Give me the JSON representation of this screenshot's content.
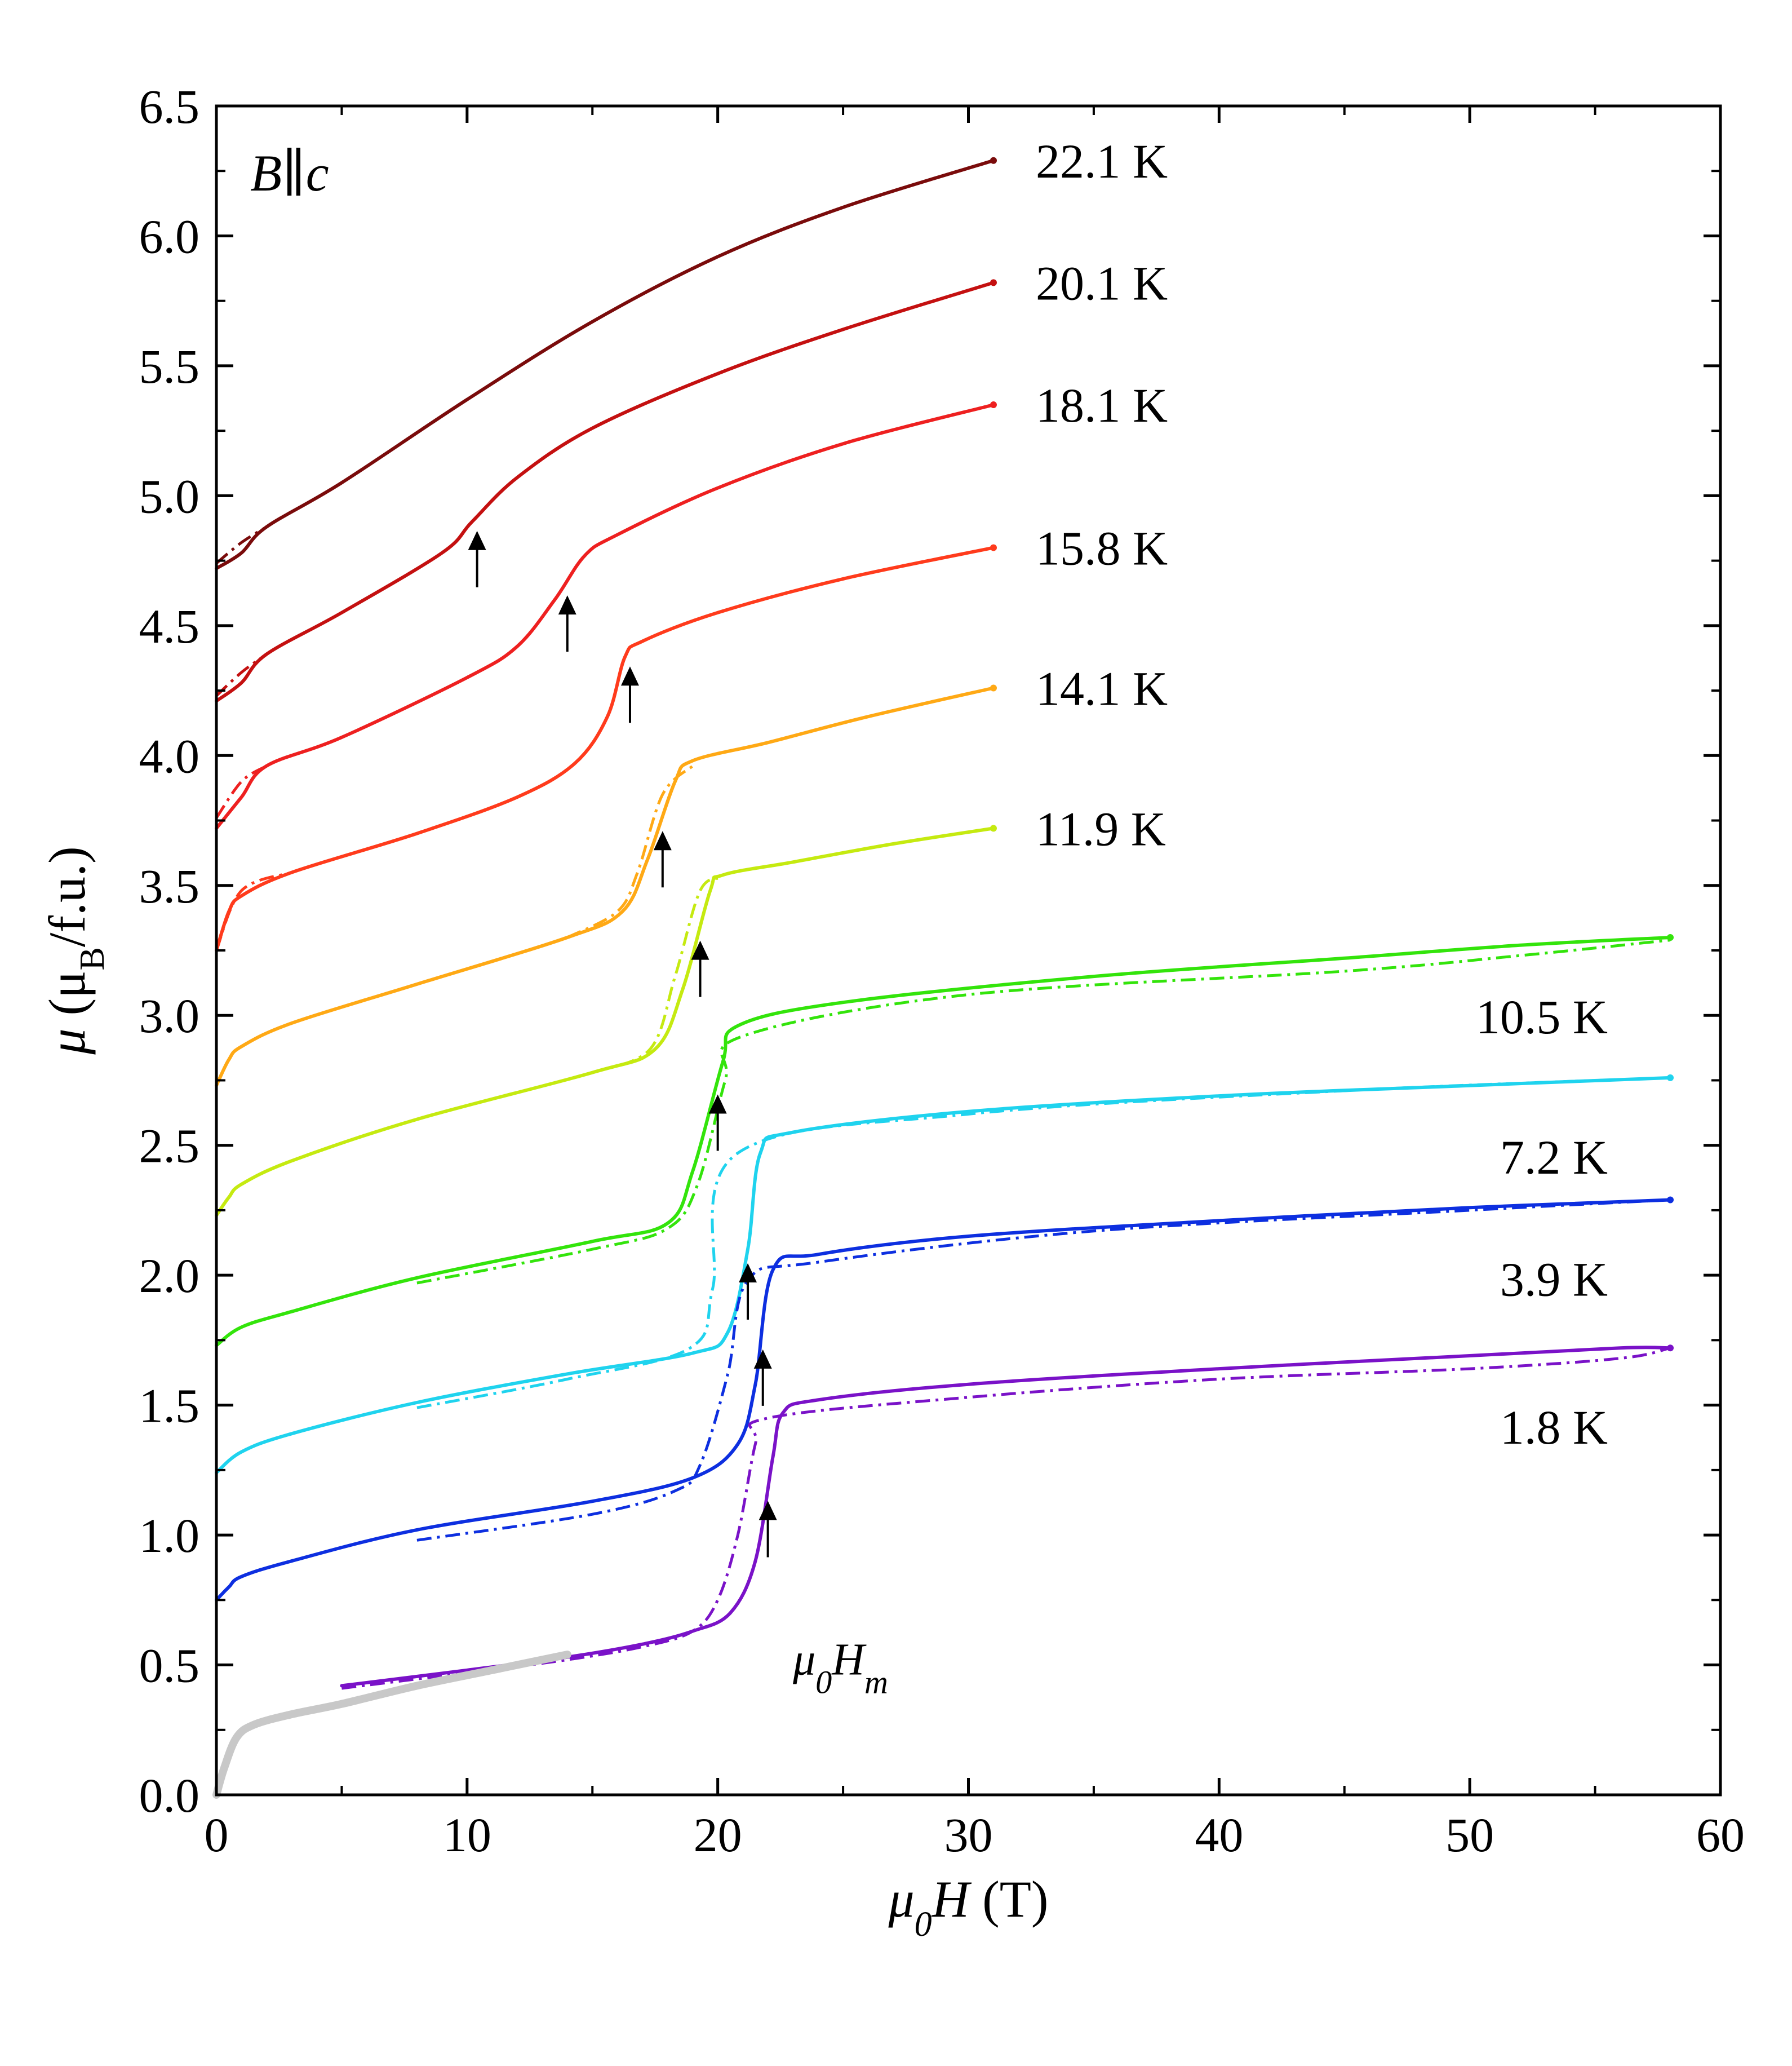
{
  "chart_data": {
    "type": "line",
    "title": "",
    "xlabel": {
      "symbol": "μ",
      "sub": "0",
      "var": "H",
      "unit": " (T)"
    },
    "ylabel": {
      "symbol": "μ",
      "open": " (μ",
      "sub": "B",
      "close": "/f.u.)"
    },
    "xlim": [
      0,
      60
    ],
    "ylim": [
      0,
      6.5
    ],
    "xticks": [
      "0",
      "10",
      "20",
      "30",
      "40",
      "50",
      "60"
    ],
    "yticks": [
      "0.0",
      "0.5",
      "1.0",
      "1.5",
      "2.0",
      "2.5",
      "3.0",
      "3.5",
      "4.0",
      "4.5",
      "5.0",
      "5.5",
      "6.0",
      "6.5"
    ],
    "field_label": {
      "var": "B",
      "rel": "∥",
      "axis": "c"
    },
    "marker_label": {
      "symbol": "μ",
      "sub": "0",
      "var": "H",
      "subvar": "m"
    },
    "series": [
      {
        "name": "22.1 K",
        "color": "#7a0b0b",
        "x_max": 31,
        "points": [
          [
            0,
            4.72
          ],
          [
            1,
            4.78
          ],
          [
            2,
            4.88
          ],
          [
            5,
            5.05
          ],
          [
            10,
            5.37
          ],
          [
            15,
            5.67
          ],
          [
            20,
            5.92
          ],
          [
            25,
            6.11
          ],
          [
            31,
            6.29
          ]
        ],
        "down_points": [
          [
            0,
            4.74
          ],
          [
            1,
            4.82
          ],
          [
            2,
            4.88
          ]
        ],
        "transition": null
      },
      {
        "name": "20.1 K",
        "color": "#c41010",
        "x_max": 31,
        "points": [
          [
            0,
            4.21
          ],
          [
            1,
            4.28
          ],
          [
            2,
            4.39
          ],
          [
            5,
            4.55
          ],
          [
            9,
            4.78
          ],
          [
            10.2,
            4.9
          ],
          [
            12,
            5.07
          ],
          [
            15,
            5.26
          ],
          [
            20,
            5.47
          ],
          [
            25,
            5.64
          ],
          [
            31,
            5.82
          ]
        ],
        "down_points": [
          [
            0,
            4.23
          ],
          [
            1,
            4.32
          ],
          [
            2,
            4.39
          ]
        ],
        "transition": 10.4
      },
      {
        "name": "18.1 K",
        "color": "#ee2020",
        "x_max": 31,
        "points": [
          [
            0,
            3.72
          ],
          [
            1,
            3.84
          ],
          [
            2,
            3.96
          ],
          [
            5,
            4.07
          ],
          [
            10,
            4.3
          ],
          [
            12,
            4.42
          ],
          [
            13.5,
            4.6
          ],
          [
            14.7,
            4.77
          ],
          [
            16,
            4.85
          ],
          [
            20,
            5.03
          ],
          [
            25,
            5.2
          ],
          [
            31,
            5.35
          ]
        ],
        "down_points": [
          [
            0,
            3.76
          ],
          [
            1,
            3.9
          ],
          [
            2,
            3.96
          ]
        ],
        "transition": 14.0
      },
      {
        "name": "15.8 K",
        "color": "#ff3b1c",
        "x_max": 31,
        "points": [
          [
            0,
            3.25
          ],
          [
            0.5,
            3.4
          ],
          [
            1,
            3.46
          ],
          [
            3,
            3.55
          ],
          [
            8,
            3.7
          ],
          [
            12,
            3.84
          ],
          [
            14.3,
            3.97
          ],
          [
            15.6,
            4.15
          ],
          [
            16.3,
            4.38
          ],
          [
            17,
            4.44
          ],
          [
            20,
            4.55
          ],
          [
            25,
            4.68
          ],
          [
            31,
            4.8
          ]
        ],
        "down_points": [
          [
            0,
            3.25
          ],
          [
            1,
            3.48
          ],
          [
            3,
            3.55
          ]
        ],
        "transition": 16.5
      },
      {
        "name": "14.1 K",
        "color": "#ffa915",
        "x_max": 31,
        "points": [
          [
            0,
            2.73
          ],
          [
            0.5,
            2.83
          ],
          [
            1,
            2.88
          ],
          [
            3,
            2.97
          ],
          [
            8,
            3.12
          ],
          [
            14,
            3.3
          ],
          [
            16.2,
            3.4
          ],
          [
            17.2,
            3.6
          ],
          [
            18.3,
            3.9
          ],
          [
            19,
            3.98
          ],
          [
            22,
            4.05
          ],
          [
            26,
            4.15
          ],
          [
            31,
            4.26
          ]
        ],
        "down_points": [
          [
            14,
            3.3
          ],
          [
            16,
            3.4
          ],
          [
            16.8,
            3.55
          ],
          [
            17.8,
            3.85
          ],
          [
            19,
            3.96
          ]
        ],
        "transition": 17.8
      },
      {
        "name": "11.9 K",
        "color": "#c5ea10",
        "x_max": 31,
        "points": [
          [
            0,
            2.23
          ],
          [
            0.5,
            2.3
          ],
          [
            1,
            2.35
          ],
          [
            3,
            2.44
          ],
          [
            8,
            2.6
          ],
          [
            15,
            2.78
          ],
          [
            17.5,
            2.87
          ],
          [
            18.6,
            3.1
          ],
          [
            19.7,
            3.48
          ],
          [
            20.2,
            3.54
          ],
          [
            23,
            3.59
          ],
          [
            27,
            3.66
          ],
          [
            31,
            3.72
          ]
        ],
        "down_points": [
          [
            15,
            2.78
          ],
          [
            17.3,
            2.87
          ],
          [
            18.3,
            3.15
          ],
          [
            19.3,
            3.48
          ],
          [
            20.2,
            3.53
          ]
        ],
        "transition": 19.3
      },
      {
        "name": "10.5 K",
        "color": "#33e40b",
        "x_max": 58,
        "points": [
          [
            0,
            1.73
          ],
          [
            1,
            1.8
          ],
          [
            3,
            1.86
          ],
          [
            8,
            1.99
          ],
          [
            15,
            2.13
          ],
          [
            18,
            2.2
          ],
          [
            19,
            2.4
          ],
          [
            20.2,
            2.82
          ],
          [
            20.8,
            2.96
          ],
          [
            25,
            3.05
          ],
          [
            35,
            3.15
          ],
          [
            45,
            3.22
          ],
          [
            52,
            3.27
          ],
          [
            58,
            3.3
          ]
        ],
        "down_points": [
          [
            8,
            1.97
          ],
          [
            15,
            2.1
          ],
          [
            18,
            2.18
          ],
          [
            19.2,
            2.35
          ],
          [
            20.3,
            2.75
          ],
          [
            21,
            2.92
          ],
          [
            30,
            3.08
          ],
          [
            45,
            3.17
          ],
          [
            52,
            3.23
          ],
          [
            58,
            3.29
          ]
        ],
        "transition": 20.0
      },
      {
        "name": "7.2 K",
        "color": "#1fd3ee",
        "x_max": 58,
        "points": [
          [
            0,
            1.24
          ],
          [
            1,
            1.32
          ],
          [
            3,
            1.39
          ],
          [
            8,
            1.51
          ],
          [
            14,
            1.62
          ],
          [
            19,
            1.7
          ],
          [
            20.4,
            1.78
          ],
          [
            21.2,
            2.1
          ],
          [
            21.7,
            2.47
          ],
          [
            23,
            2.55
          ],
          [
            30,
            2.63
          ],
          [
            40,
            2.69
          ],
          [
            50,
            2.73
          ],
          [
            58,
            2.76
          ]
        ],
        "down_points": [
          [
            8,
            1.49
          ],
          [
            14,
            1.6
          ],
          [
            18.9,
            1.72
          ],
          [
            19.8,
            1.95
          ],
          [
            20.8,
            2.47
          ],
          [
            30,
            2.62
          ],
          [
            45,
            2.71
          ],
          [
            58,
            2.76
          ]
        ],
        "transition": 21.2
      },
      {
        "name": "3.9 K",
        "color": "#0d2fe0",
        "x_max": 58,
        "points": [
          [
            0,
            0.75
          ],
          [
            0.5,
            0.8
          ],
          [
            1,
            0.84
          ],
          [
            3,
            0.9
          ],
          [
            8,
            1.02
          ],
          [
            15,
            1.13
          ],
          [
            19,
            1.22
          ],
          [
            20.8,
            1.35
          ],
          [
            21.5,
            1.58
          ],
          [
            22.2,
            2.02
          ],
          [
            24,
            2.08
          ],
          [
            30,
            2.15
          ],
          [
            40,
            2.21
          ],
          [
            50,
            2.26
          ],
          [
            58,
            2.29
          ]
        ],
        "down_points": [
          [
            8,
            0.98
          ],
          [
            15,
            1.08
          ],
          [
            18.3,
            1.17
          ],
          [
            19.3,
            1.27
          ],
          [
            20.4,
            1.62
          ],
          [
            21.2,
            1.98
          ],
          [
            24,
            2.05
          ],
          [
            35,
            2.17
          ],
          [
            50,
            2.25
          ],
          [
            58,
            2.29
          ]
        ],
        "transition": 21.8
      },
      {
        "name": "1.8 K",
        "color": "#7a12c8",
        "x_max": 58,
        "points": [
          [
            5,
            0.42
          ],
          [
            10,
            0.48
          ],
          [
            14,
            0.53
          ],
          [
            17,
            0.58
          ],
          [
            19,
            0.63
          ],
          [
            20.5,
            0.7
          ],
          [
            21.5,
            0.9
          ],
          [
            22.2,
            1.3
          ],
          [
            22.6,
            1.47
          ],
          [
            24,
            1.52
          ],
          [
            30,
            1.58
          ],
          [
            40,
            1.64
          ],
          [
            50,
            1.69
          ],
          [
            56,
            1.72
          ],
          [
            58,
            1.72
          ]
        ],
        "down_points": [
          [
            5,
            0.41
          ],
          [
            10,
            0.47
          ],
          [
            14,
            0.52
          ],
          [
            17,
            0.57
          ],
          [
            19,
            0.63
          ],
          [
            20,
            0.75
          ],
          [
            20.8,
            1.0
          ],
          [
            21.5,
            1.35
          ],
          [
            22,
            1.45
          ],
          [
            30,
            1.53
          ],
          [
            40,
            1.6
          ],
          [
            50,
            1.64
          ],
          [
            56,
            1.68
          ],
          [
            58,
            1.72
          ]
        ],
        "transition": 22.0
      },
      {
        "name": "",
        "color": "#c8c8c8",
        "x_max": 14,
        "points": [
          [
            0,
            0.0
          ],
          [
            0.3,
            0.1
          ],
          [
            0.8,
            0.22
          ],
          [
            1.5,
            0.27
          ],
          [
            3,
            0.31
          ],
          [
            5,
            0.35
          ],
          [
            8,
            0.42
          ],
          [
            11,
            0.48
          ],
          [
            14,
            0.54
          ]
        ],
        "down_points": [],
        "transition": null
      }
    ]
  }
}
